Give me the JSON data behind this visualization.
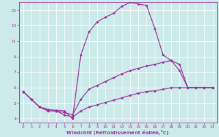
{
  "xlabel": "Windchill (Refroidissement éolien,°C)",
  "xlim": [
    -0.5,
    23.5
  ],
  "ylim": [
    0.5,
    16
  ],
  "xticks": [
    0,
    1,
    2,
    3,
    4,
    5,
    6,
    7,
    8,
    9,
    10,
    11,
    12,
    13,
    14,
    15,
    16,
    17,
    18,
    19,
    20,
    21,
    22,
    23
  ],
  "yticks": [
    1,
    3,
    5,
    7,
    9,
    11,
    13,
    15
  ],
  "bg_color": "#cceaea",
  "line_color": "#993399",
  "grid_color": "#ffffff",
  "line1_x": [
    0,
    1,
    2,
    3,
    4,
    5,
    6,
    7,
    8,
    9,
    10,
    11,
    12,
    13,
    14,
    15,
    16,
    17,
    18,
    19,
    20,
    21,
    22,
    23
  ],
  "line1_y": [
    4.5,
    3.5,
    2.5,
    2.2,
    2.1,
    2.0,
    1.0,
    9.2,
    12.2,
    13.5,
    14.1,
    14.6,
    15.5,
    16.0,
    15.8,
    15.6,
    12.6,
    9.2,
    8.5,
    7.2,
    5.0,
    5.0,
    5.0,
    5.0
  ],
  "line2_x": [
    0,
    1,
    2,
    3,
    4,
    5,
    6,
    7,
    8,
    9,
    10,
    11,
    12,
    13,
    14,
    15,
    16,
    17,
    18,
    19,
    20,
    21,
    22,
    23
  ],
  "line2_y": [
    4.5,
    3.5,
    2.5,
    2.2,
    2.0,
    1.8,
    1.5,
    3.5,
    4.8,
    5.3,
    5.8,
    6.3,
    6.8,
    7.2,
    7.5,
    7.8,
    8.0,
    8.3,
    8.5,
    8.0,
    5.0,
    5.0,
    5.0,
    5.0
  ],
  "line3_x": [
    0,
    1,
    2,
    3,
    4,
    5,
    6,
    7,
    8,
    9,
    10,
    11,
    12,
    13,
    14,
    15,
    16,
    17,
    18,
    19,
    20,
    21,
    22,
    23
  ],
  "line3_y": [
    4.5,
    3.5,
    2.5,
    2.0,
    2.0,
    1.5,
    1.2,
    2.0,
    2.5,
    2.8,
    3.1,
    3.4,
    3.7,
    4.0,
    4.3,
    4.5,
    4.6,
    4.8,
    5.0,
    5.0,
    5.0,
    5.0,
    5.0,
    5.0
  ]
}
